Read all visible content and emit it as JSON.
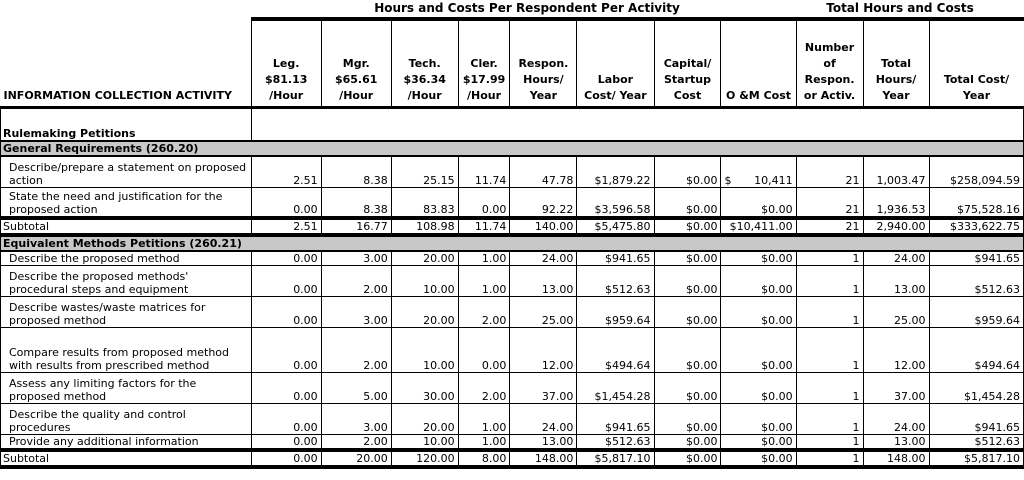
{
  "group_headers": {
    "per_respondent": "Hours and Costs Per Respondent Per Activity",
    "totals": "Total Hours and Costs"
  },
  "columns": {
    "activity": "INFORMATION COLLECTION ACTIVITY",
    "leg": "Leg. $81.13 /Hour",
    "mgr": "Mgr. $65.61 /Hour",
    "tech": "Tech. $36.34 /Hour",
    "cler": "Cler. $17.99 /Hour",
    "respon_hours": "Respon. Hours/ Year",
    "labor_cost": "Labor Cost/ Year",
    "capital": "Capital/ Startup Cost",
    "om": "O &M Cost",
    "num_respon": "Number of Respon. or Activ.",
    "total_hours": "Total Hours/ Year",
    "total_cost": "Total Cost/ Year"
  },
  "rulemaking_label": "Rulemaking Petitions",
  "section1": {
    "title": "General Requirements (260.20)",
    "rows": [
      {
        "activity": "Describe/prepare a statement on proposed action",
        "leg": "2.51",
        "mgr": "8.38",
        "tech": "25.15",
        "cler": "11.74",
        "hours": "47.78",
        "labor": "$1,879.22",
        "capital": "$0.00",
        "om_sym": "$",
        "om_val": "10,411",
        "num": "21",
        "total_hours": "1,003.47",
        "total_cost": "$258,094.59"
      },
      {
        "activity": "State the need and justification for the proposed action",
        "leg": "0.00",
        "mgr": "8.38",
        "tech": "83.83",
        "cler": "0.00",
        "hours": "92.22",
        "labor": "$3,596.58",
        "capital": "$0.00",
        "om": "$0.00",
        "num": "21",
        "total_hours": "1,936.53",
        "total_cost": "$75,528.16"
      }
    ],
    "subtotal": {
      "label": "Subtotal",
      "leg": "2.51",
      "mgr": "16.77",
      "tech": "108.98",
      "cler": "11.74",
      "hours": "140.00",
      "labor": "$5,475.80",
      "capital": "$0.00",
      "om": "$10,411.00",
      "num": "21",
      "total_hours": "2,940.00",
      "total_cost": "$333,622.75"
    }
  },
  "section2": {
    "title": "Equivalent Methods Petitions (260.21)",
    "rows": [
      {
        "activity": "Describe the proposed method",
        "leg": "0.00",
        "mgr": "3.00",
        "tech": "20.00",
        "cler": "1.00",
        "hours": "24.00",
        "labor": "$941.65",
        "capital": "$0.00",
        "om": "$0.00",
        "num": "1",
        "total_hours": "24.00",
        "total_cost": "$941.65"
      },
      {
        "activity": "Describe the proposed methods' procedural steps and equipment",
        "leg": "0.00",
        "mgr": "2.00",
        "tech": "10.00",
        "cler": "1.00",
        "hours": "13.00",
        "labor": "$512.63",
        "capital": "$0.00",
        "om": "$0.00",
        "num": "1",
        "total_hours": "13.00",
        "total_cost": "$512.63"
      },
      {
        "activity": "Describe wastes/waste matrices for proposed method",
        "leg": "0.00",
        "mgr": "3.00",
        "tech": "20.00",
        "cler": "2.00",
        "hours": "25.00",
        "labor": "$959.64",
        "capital": "$0.00",
        "om": "$0.00",
        "num": "1",
        "total_hours": "25.00",
        "total_cost": "$959.64"
      },
      {
        "activity": "Compare results from proposed method with results from prescribed method",
        "leg": "0.00",
        "mgr": "2.00",
        "tech": "10.00",
        "cler": "0.00",
        "hours": "12.00",
        "labor": "$494.64",
        "capital": "$0.00",
        "om": "$0.00",
        "num": "1",
        "total_hours": "12.00",
        "total_cost": "$494.64"
      },
      {
        "activity": "Assess any limiting factors for the proposed method",
        "leg": "0.00",
        "mgr": "5.00",
        "tech": "30.00",
        "cler": "2.00",
        "hours": "37.00",
        "labor": "$1,454.28",
        "capital": "$0.00",
        "om": "$0.00",
        "num": "1",
        "total_hours": "37.00",
        "total_cost": "$1,454.28"
      },
      {
        "activity": "Describe the quality and control procedures",
        "leg": "0.00",
        "mgr": "3.00",
        "tech": "20.00",
        "cler": "1.00",
        "hours": "24.00",
        "labor": "$941.65",
        "capital": "$0.00",
        "om": "$0.00",
        "num": "1",
        "total_hours": "24.00",
        "total_cost": "$941.65"
      },
      {
        "activity": "Provide any additional information",
        "leg": "0.00",
        "mgr": "2.00",
        "tech": "10.00",
        "cler": "1.00",
        "hours": "13.00",
        "labor": "$512.63",
        "capital": "$0.00",
        "om": "$0.00",
        "num": "1",
        "total_hours": "13.00",
        "total_cost": "$512.63"
      }
    ],
    "subtotal": {
      "label": "Subtotal",
      "leg": "0.00",
      "mgr": "20.00",
      "tech": "120.00",
      "cler": "8.00",
      "hours": "148.00",
      "labor": "$5,817.10",
      "capital": "$0.00",
      "om": "$0.00",
      "num": "1",
      "total_hours": "148.00",
      "total_cost": "$5,817.10"
    }
  }
}
